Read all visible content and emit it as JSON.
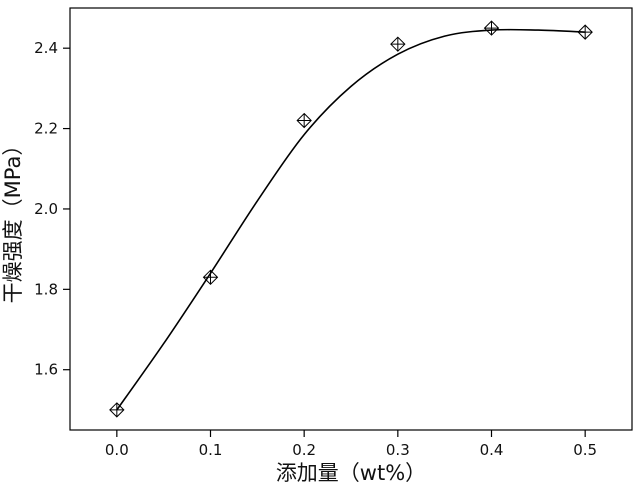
{
  "chart_data": {
    "type": "scatter",
    "x_label": "添加量（wt%）",
    "y_label": "干燥强度（MPa）",
    "xlim": [
      -0.05,
      0.55
    ],
    "ylim": [
      1.45,
      2.5
    ],
    "xticks": [
      {
        "value": 0,
        "label": "0.0"
      },
      0.1,
      0.2,
      0.3,
      0.4,
      0.5
    ],
    "yticks": [
      1.6,
      1.8,
      {
        "value": 2,
        "label": "2.0"
      },
      2.2,
      2.4
    ],
    "series": [
      {
        "kind": "points",
        "color": "#000000",
        "x": [
          0,
          0.1,
          0.2,
          0.3,
          0.4,
          0.5
        ],
        "values": [
          1.5,
          1.83,
          2.22,
          2.41,
          2.45,
          2.44
        ]
      },
      {
        "kind": "fit",
        "color": "#000000",
        "x": [
          0,
          0.05,
          0.1,
          0.15,
          0.2,
          0.25,
          0.3,
          0.35,
          0.4,
          0.45,
          0.5
        ],
        "values": [
          1.5,
          1.665,
          1.84,
          2.02,
          2.185,
          2.305,
          2.385,
          2.43,
          2.445,
          2.445,
          2.44
        ]
      }
    ]
  }
}
